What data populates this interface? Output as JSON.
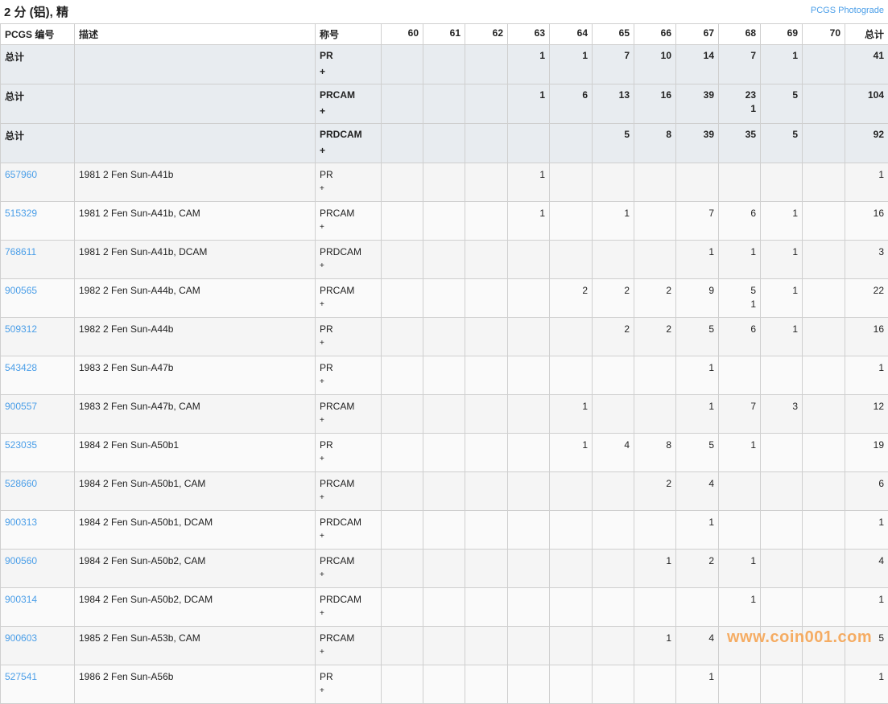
{
  "title": "2 分 (铝), 精",
  "photograde_link": "PCGS Photograde",
  "headers": [
    "PCGS 编号",
    "描述",
    "称号",
    "60",
    "61",
    "62",
    "63",
    "64",
    "65",
    "66",
    "67",
    "68",
    "69",
    "70",
    "总计"
  ],
  "summary": [
    {
      "label": "总计",
      "designation": "PR",
      "plus": "+",
      "grades": [
        "",
        "",
        "",
        "1",
        "1",
        "7",
        "10",
        "14",
        "7",
        "1",
        ""
      ],
      "plus_grades": [
        "",
        "",
        "",
        "",
        "",
        "",
        "",
        "",
        "",
        "",
        ""
      ],
      "total": "41"
    },
    {
      "label": "总计",
      "designation": "PRCAM",
      "plus": "+",
      "grades": [
        "",
        "",
        "",
        "1",
        "6",
        "13",
        "16",
        "39",
        "23",
        "5",
        ""
      ],
      "plus_grades": [
        "",
        "",
        "",
        "",
        "",
        "",
        "",
        "",
        "1",
        "",
        ""
      ],
      "total": "104"
    },
    {
      "label": "总计",
      "designation": "PRDCAM",
      "plus": "+",
      "grades": [
        "",
        "",
        "",
        "",
        "",
        "5",
        "8",
        "39",
        "35",
        "5",
        ""
      ],
      "plus_grades": [
        "",
        "",
        "",
        "",
        "",
        "",
        "",
        "",
        "",
        "",
        ""
      ],
      "total": "92"
    }
  ],
  "rows": [
    {
      "pcgs": "657960",
      "desc": "1981 2 Fen Sun-A41b",
      "designation": "PR",
      "plus": "+",
      "grades": [
        "",
        "",
        "",
        "1",
        "",
        "",
        "",
        "",
        "",
        "",
        ""
      ],
      "plus_grades": [],
      "total": "1"
    },
    {
      "pcgs": "515329",
      "desc": "1981 2 Fen Sun-A41b, CAM",
      "designation": "PRCAM",
      "plus": "+",
      "grades": [
        "",
        "",
        "",
        "1",
        "",
        "1",
        "",
        "7",
        "6",
        "1",
        ""
      ],
      "plus_grades": [],
      "total": "16"
    },
    {
      "pcgs": "768611",
      "desc": "1981 2 Fen Sun-A41b, DCAM",
      "designation": "PRDCAM",
      "plus": "+",
      "grades": [
        "",
        "",
        "",
        "",
        "",
        "",
        "",
        "1",
        "1",
        "1",
        ""
      ],
      "plus_grades": [],
      "total": "3"
    },
    {
      "pcgs": "900565",
      "desc": "1982 2 Fen Sun-A44b, CAM",
      "designation": "PRCAM",
      "plus": "+",
      "grades": [
        "",
        "",
        "",
        "",
        "2",
        "2",
        "2",
        "9",
        "5",
        "1",
        ""
      ],
      "plus_grades": [
        "",
        "",
        "",
        "",
        "",
        "",
        "",
        "",
        "1",
        "",
        ""
      ],
      "total": "22"
    },
    {
      "pcgs": "509312",
      "desc": "1982 2 Fen Sun-A44b",
      "designation": "PR",
      "plus": "+",
      "grades": [
        "",
        "",
        "",
        "",
        "",
        "2",
        "2",
        "5",
        "6",
        "1",
        ""
      ],
      "plus_grades": [],
      "total": "16"
    },
    {
      "pcgs": "543428",
      "desc": "1983 2 Fen Sun-A47b",
      "designation": "PR",
      "plus": "+",
      "grades": [
        "",
        "",
        "",
        "",
        "",
        "",
        "",
        "1",
        "",
        "",
        ""
      ],
      "plus_grades": [],
      "total": "1"
    },
    {
      "pcgs": "900557",
      "desc": "1983 2 Fen Sun-A47b, CAM",
      "designation": "PRCAM",
      "plus": "+",
      "grades": [
        "",
        "",
        "",
        "",
        "1",
        "",
        "",
        "1",
        "7",
        "3",
        ""
      ],
      "plus_grades": [],
      "total": "12"
    },
    {
      "pcgs": "523035",
      "desc": "1984 2 Fen Sun-A50b1",
      "designation": "PR",
      "plus": "+",
      "grades": [
        "",
        "",
        "",
        "",
        "1",
        "4",
        "8",
        "5",
        "1",
        "",
        ""
      ],
      "plus_grades": [],
      "total": "19"
    },
    {
      "pcgs": "528660",
      "desc": "1984 2 Fen Sun-A50b1, CAM",
      "designation": "PRCAM",
      "plus": "+",
      "grades": [
        "",
        "",
        "",
        "",
        "",
        "",
        "2",
        "4",
        "",
        "",
        ""
      ],
      "plus_grades": [],
      "total": "6"
    },
    {
      "pcgs": "900313",
      "desc": "1984 2 Fen Sun-A50b1, DCAM",
      "designation": "PRDCAM",
      "plus": "+",
      "grades": [
        "",
        "",
        "",
        "",
        "",
        "",
        "",
        "1",
        "",
        "",
        ""
      ],
      "plus_grades": [],
      "total": "1"
    },
    {
      "pcgs": "900560",
      "desc": "1984 2 Fen Sun-A50b2, CAM",
      "designation": "PRCAM",
      "plus": "+",
      "grades": [
        "",
        "",
        "",
        "",
        "",
        "",
        "1",
        "2",
        "1",
        "",
        ""
      ],
      "plus_grades": [],
      "total": "4"
    },
    {
      "pcgs": "900314",
      "desc": "1984 2 Fen Sun-A50b2, DCAM",
      "designation": "PRDCAM",
      "plus": "+",
      "grades": [
        "",
        "",
        "",
        "",
        "",
        "",
        "",
        "",
        "1",
        "",
        ""
      ],
      "plus_grades": [],
      "total": "1"
    },
    {
      "pcgs": "900603",
      "desc": "1985 2 Fen Sun-A53b, CAM",
      "designation": "PRCAM",
      "plus": "+",
      "grades": [
        "",
        "",
        "",
        "",
        "",
        "",
        "1",
        "4",
        "",
        "",
        ""
      ],
      "plus_grades": [],
      "total": "5"
    },
    {
      "pcgs": "527541",
      "desc": "1986 2 Fen Sun-A56b",
      "designation": "PR",
      "plus": "+",
      "grades": [
        "",
        "",
        "",
        "",
        "",
        "",
        "",
        "1",
        "",
        "",
        ""
      ],
      "plus_grades": [],
      "total": "1"
    }
  ],
  "watermark": "www.coin001.com",
  "colors": {
    "link": "#4a9ee8",
    "summary_bg": "#e8ecf0",
    "watermark": "#f6a04a"
  }
}
